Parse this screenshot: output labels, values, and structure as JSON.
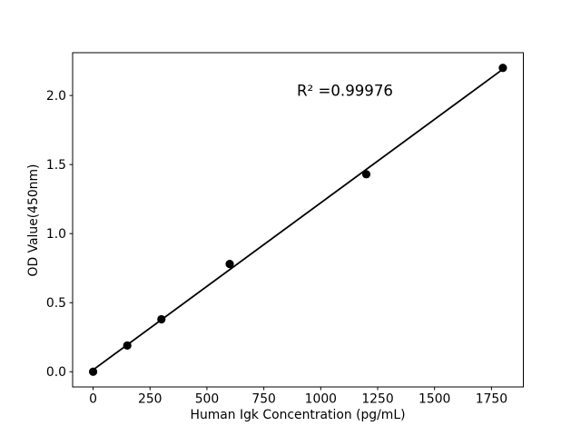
{
  "figure": {
    "background": "#ffffff",
    "foreground": "#000000"
  },
  "chart_data": {
    "type": "scatter",
    "title": "",
    "xlabel": "Human Igk Concentration (pg/mL)",
    "ylabel": "OD Value(450nm)",
    "annotation": "R² =0.99976",
    "r_squared": 0.99976,
    "x": [
      0,
      150,
      300,
      600,
      1200,
      1800
    ],
    "y": [
      0.0,
      0.19,
      0.38,
      0.78,
      1.43,
      2.2
    ],
    "fit_line": true,
    "xticks": [
      0,
      250,
      500,
      750,
      1000,
      1250,
      1500,
      1750
    ],
    "yticks": [
      0.0,
      0.5,
      1.0,
      1.5,
      2.0
    ],
    "ytick_labels": [
      "0.0",
      "0.5",
      "1.0",
      "1.5",
      "2.0"
    ],
    "xlim": [
      -90,
      1890
    ],
    "ylim": [
      -0.11,
      2.31
    ],
    "grid": false,
    "legend": "none",
    "marker_color": "#000000",
    "line_color": "#000000"
  }
}
